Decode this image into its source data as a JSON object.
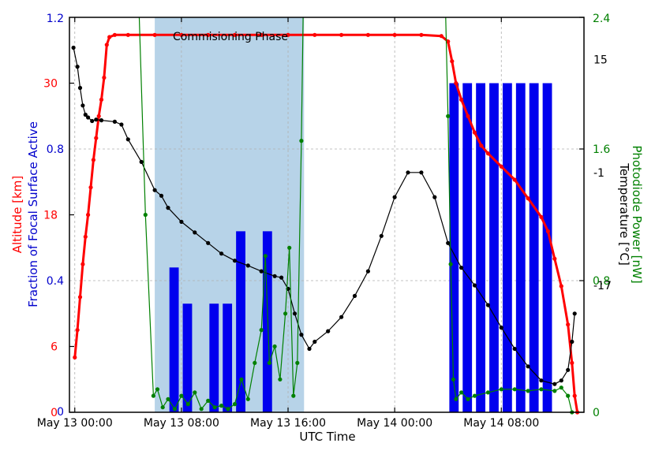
{
  "chart_data": {
    "type": "line",
    "x_axis": {
      "label": "UTC Time",
      "tick_labels": [
        "May 13 00:00",
        "May 13 08:00",
        "May 13 16:00",
        "May 14 00:00",
        "May 14 08:00"
      ],
      "tick_hours": [
        0,
        8,
        16,
        24,
        32
      ],
      "range_hours": [
        -0.4,
        38.2
      ]
    },
    "left_outer_axis": {
      "label": "Altitude [km]",
      "color": "#ff0000",
      "range": [
        0,
        36
      ],
      "tick_labels": [
        "0",
        "6",
        "18",
        "30"
      ],
      "tick_values": [
        0,
        6,
        18,
        30
      ]
    },
    "left_inner_axis": {
      "label": "Fraction of Focal Surface Active",
      "color": "#0000cc",
      "range": [
        0,
        1.2
      ],
      "tick_labels": [
        "0",
        "0.4",
        "0.8",
        "1.2"
      ],
      "tick_values": [
        0,
        0.4,
        0.8,
        1.2
      ]
    },
    "right_inner_axis": {
      "label": "Photodiode Power [nW]",
      "color": "#008000",
      "range": [
        0,
        2.4
      ],
      "tick_labels": [
        "0",
        "0.8",
        "1.6",
        "2.4"
      ],
      "tick_values": [
        0,
        0.8,
        1.6,
        2.4
      ]
    },
    "right_outer_axis": {
      "label": "Temperature [°C]",
      "color": "#000000",
      "range": [
        -35,
        21
      ],
      "tick_labels": [
        "-17",
        "-1",
        "15"
      ],
      "tick_values": [
        -17,
        -1,
        15
      ]
    },
    "annotation": "Commisioning Phase",
    "phase_span_hours": [
      6.0,
      17.2
    ],
    "grid": true,
    "series": [
      {
        "name": "Altitude [km]",
        "color": "#ff0000",
        "axis": "left_outer_axis",
        "points": [
          [
            0.0,
            5.0
          ],
          [
            0.2,
            7.5
          ],
          [
            0.4,
            10.5
          ],
          [
            0.6,
            13.5
          ],
          [
            0.8,
            16.0
          ],
          [
            1.0,
            18.0
          ],
          [
            1.2,
            20.5
          ],
          [
            1.4,
            23.0
          ],
          [
            1.6,
            25.0
          ],
          [
            1.8,
            27.0
          ],
          [
            2.0,
            28.5
          ],
          [
            2.2,
            30.5
          ],
          [
            2.4,
            33.5
          ],
          [
            2.6,
            34.2
          ],
          [
            3.0,
            34.4
          ],
          [
            4.0,
            34.4
          ],
          [
            6.0,
            34.4
          ],
          [
            8.0,
            34.4
          ],
          [
            10.0,
            34.4
          ],
          [
            12.0,
            34.4
          ],
          [
            14.0,
            34.4
          ],
          [
            16.0,
            34.4
          ],
          [
            18.0,
            34.4
          ],
          [
            20.0,
            34.4
          ],
          [
            22.0,
            34.4
          ],
          [
            24.0,
            34.4
          ],
          [
            26.0,
            34.4
          ],
          [
            27.5,
            34.3
          ],
          [
            28.0,
            33.8
          ],
          [
            28.3,
            32.0
          ],
          [
            28.6,
            30.0
          ],
          [
            29.0,
            28.5
          ],
          [
            29.5,
            27.0
          ],
          [
            30.0,
            25.5
          ],
          [
            30.5,
            24.3
          ],
          [
            31.0,
            23.6
          ],
          [
            32.0,
            22.4
          ],
          [
            33.0,
            21.2
          ],
          [
            34.0,
            19.5
          ],
          [
            35.0,
            17.8
          ],
          [
            35.5,
            16.5
          ],
          [
            36.0,
            14.0
          ],
          [
            36.5,
            11.5
          ],
          [
            37.0,
            8.0
          ],
          [
            37.3,
            4.5
          ],
          [
            37.5,
            1.5
          ],
          [
            37.7,
            0.0
          ]
        ]
      },
      {
        "name": "Temperature [°C]",
        "color": "#000000",
        "axis": "right_outer_axis",
        "points": [
          [
            -0.1,
            16.7
          ],
          [
            0.2,
            14.0
          ],
          [
            0.4,
            11.0
          ],
          [
            0.6,
            8.5
          ],
          [
            0.8,
            7.2
          ],
          [
            1.0,
            6.8
          ],
          [
            1.3,
            6.3
          ],
          [
            1.6,
            6.5
          ],
          [
            2.0,
            6.4
          ],
          [
            3.0,
            6.2
          ],
          [
            3.5,
            5.8
          ],
          [
            4.0,
            3.7
          ],
          [
            5.0,
            0.5
          ],
          [
            6.0,
            -3.5
          ],
          [
            6.5,
            -4.3
          ],
          [
            7.0,
            -6.0
          ],
          [
            8.0,
            -8.0
          ],
          [
            9.0,
            -9.5
          ],
          [
            10.0,
            -11.0
          ],
          [
            11.0,
            -12.5
          ],
          [
            12.0,
            -13.5
          ],
          [
            13.0,
            -14.2
          ],
          [
            14.0,
            -15.0
          ],
          [
            15.0,
            -15.7
          ],
          [
            15.5,
            -15.9
          ],
          [
            16.0,
            -17.5
          ],
          [
            16.5,
            -21.0
          ],
          [
            17.0,
            -24.0
          ],
          [
            17.6,
            -26.0
          ],
          [
            18.0,
            -25.0
          ],
          [
            19.0,
            -23.5
          ],
          [
            20.0,
            -21.5
          ],
          [
            21.0,
            -18.5
          ],
          [
            22.0,
            -15.0
          ],
          [
            23.0,
            -10.0
          ],
          [
            24.0,
            -4.5
          ],
          [
            25.0,
            -1.0
          ],
          [
            26.0,
            -1.0
          ],
          [
            27.0,
            -4.5
          ],
          [
            28.0,
            -11.0
          ],
          [
            29.0,
            -14.5
          ],
          [
            30.0,
            -17.0
          ],
          [
            31.0,
            -19.8
          ],
          [
            32.0,
            -23.0
          ],
          [
            33.0,
            -26.0
          ],
          [
            34.0,
            -28.5
          ],
          [
            35.0,
            -30.5
          ],
          [
            36.0,
            -31.0
          ],
          [
            36.5,
            -30.5
          ],
          [
            37.0,
            -29.0
          ],
          [
            37.3,
            -25.0
          ],
          [
            37.5,
            -21.0
          ]
        ]
      },
      {
        "name": "Photodiode Power [nW]",
        "color": "#008000",
        "axis": "right_inner_axis",
        "points": [
          [
            4.8,
            2.5
          ],
          [
            5.3,
            1.2
          ],
          [
            5.9,
            0.1
          ],
          [
            6.2,
            0.14
          ],
          [
            6.6,
            0.03
          ],
          [
            7.0,
            0.08
          ],
          [
            7.5,
            0.02
          ],
          [
            8.0,
            0.1
          ],
          [
            8.5,
            0.05
          ],
          [
            9.0,
            0.12
          ],
          [
            9.5,
            0.02
          ],
          [
            10.0,
            0.07
          ],
          [
            10.5,
            0.03
          ],
          [
            11.0,
            0.04
          ],
          [
            11.5,
            0.02
          ],
          [
            12.0,
            0.05
          ],
          [
            12.5,
            0.2
          ],
          [
            13.0,
            0.08
          ],
          [
            13.5,
            0.3
          ],
          [
            14.0,
            0.5
          ],
          [
            14.3,
            0.95
          ],
          [
            14.6,
            0.3
          ],
          [
            15.0,
            0.4
          ],
          [
            15.4,
            0.2
          ],
          [
            15.8,
            0.6
          ],
          [
            16.1,
            1.0
          ],
          [
            16.4,
            0.1
          ],
          [
            16.7,
            0.3
          ],
          [
            17.0,
            1.65
          ],
          [
            17.15,
            2.5
          ],
          [
            27.8,
            2.5
          ],
          [
            28.0,
            1.8
          ],
          [
            28.2,
            0.9
          ],
          [
            28.4,
            0.2
          ],
          [
            28.6,
            0.08
          ],
          [
            29.0,
            0.12
          ],
          [
            29.5,
            0.08
          ],
          [
            30.0,
            0.1
          ],
          [
            31.0,
            0.12
          ],
          [
            32.0,
            0.14
          ],
          [
            33.0,
            0.14
          ],
          [
            34.0,
            0.13
          ],
          [
            35.0,
            0.14
          ],
          [
            36.0,
            0.13
          ],
          [
            36.5,
            0.15
          ],
          [
            37.0,
            0.1
          ],
          [
            37.3,
            0.0
          ]
        ]
      }
    ],
    "bars": {
      "name": "Fraction of Focal Surface Active",
      "color": "#0000ee",
      "axis": "left_inner_axis",
      "items": [
        {
          "start": 7.1,
          "end": 7.8,
          "value": 0.44
        },
        {
          "start": 8.1,
          "end": 8.8,
          "value": 0.33
        },
        {
          "start": 10.1,
          "end": 10.8,
          "value": 0.33
        },
        {
          "start": 11.1,
          "end": 11.8,
          "value": 0.33
        },
        {
          "start": 12.1,
          "end": 12.8,
          "value": 0.55
        },
        {
          "start": 14.1,
          "end": 14.8,
          "value": 0.55
        },
        {
          "start": 28.1,
          "end": 28.8,
          "value": 1.0
        },
        {
          "start": 29.1,
          "end": 29.8,
          "value": 1.0
        },
        {
          "start": 30.1,
          "end": 30.8,
          "value": 1.0
        },
        {
          "start": 31.1,
          "end": 31.8,
          "value": 1.0
        },
        {
          "start": 32.1,
          "end": 32.8,
          "value": 1.0
        },
        {
          "start": 33.1,
          "end": 33.8,
          "value": 1.0
        },
        {
          "start": 34.1,
          "end": 34.8,
          "value": 1.0
        },
        {
          "start": 35.1,
          "end": 35.8,
          "value": 1.0
        }
      ]
    }
  }
}
